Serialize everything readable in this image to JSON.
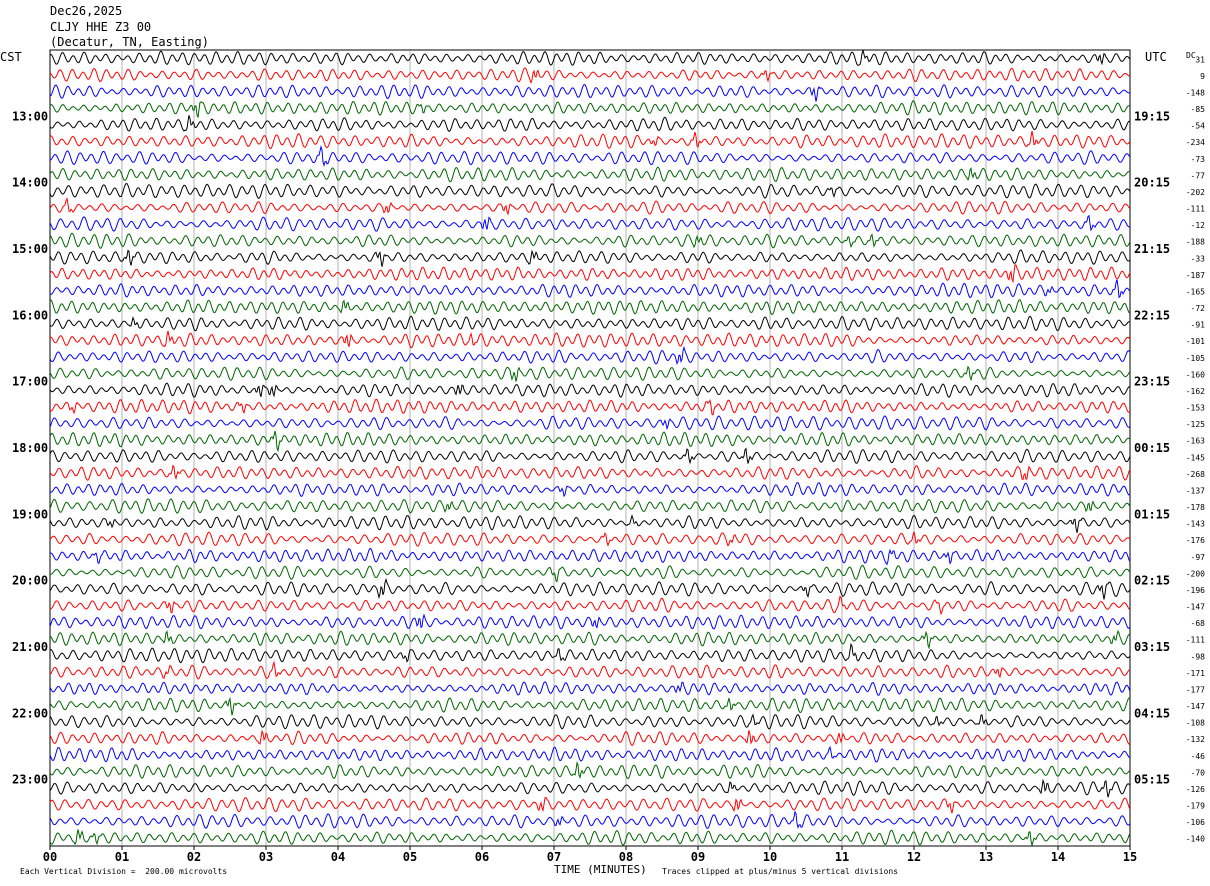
{
  "header": {
    "date": "Dec26,2025",
    "station": "CLJY HHE Z3 00",
    "location": "(Decatur, TN, Easting)"
  },
  "left_tz": "CST",
  "right_tz": "UTC",
  "dc_label": "DC",
  "dc_first": "31",
  "footer": {
    "left": "Each Vertical Division =  200.00 microvolts",
    "xlabel": "TIME (MINUTES)",
    "right": "Traces clipped at plus/minus 5 vertical divisions"
  },
  "colors": {
    "trace_cycle": [
      "#000000",
      "#ff0000",
      "#0000ff",
      "#006400"
    ],
    "grid": "#808080"
  },
  "chart_data": {
    "type": "line",
    "title": "",
    "xlabel": "TIME (MINUTES)",
    "xlim": [
      0,
      15
    ],
    "x_ticks": [
      "00",
      "01",
      "02",
      "03",
      "04",
      "05",
      "06",
      "07",
      "08",
      "09",
      "10",
      "11",
      "12",
      "13",
      "14",
      "15"
    ],
    "left_hour_labels": [
      {
        "label": "13:00",
        "row": 4
      },
      {
        "label": "14:00",
        "row": 8
      },
      {
        "label": "15:00",
        "row": 12
      },
      {
        "label": "16:00",
        "row": 16
      },
      {
        "label": "17:00",
        "row": 20
      },
      {
        "label": "18:00",
        "row": 24
      },
      {
        "label": "19:00",
        "row": 28
      },
      {
        "label": "20:00",
        "row": 32
      },
      {
        "label": "21:00",
        "row": 36
      },
      {
        "label": "22:00",
        "row": 40
      },
      {
        "label": "23:00",
        "row": 44
      }
    ],
    "right_hour_labels": [
      {
        "label": "19:15",
        "row": 4
      },
      {
        "label": "20:15",
        "row": 8
      },
      {
        "label": "21:15",
        "row": 12
      },
      {
        "label": "22:15",
        "row": 16
      },
      {
        "label": "23:15",
        "row": 20
      },
      {
        "label": "00:15",
        "row": 24
      },
      {
        "label": "01:15",
        "row": 28
      },
      {
        "label": "02:15",
        "row": 32
      },
      {
        "label": "03:15",
        "row": 36
      },
      {
        "label": "04:15",
        "row": 40
      },
      {
        "label": "05:15",
        "row": 44
      }
    ],
    "dc_offsets": [
      31,
      9,
      -148,
      -85,
      -54,
      -234,
      -73,
      -77,
      -202,
      -111,
      -12,
      -188,
      -33,
      -187,
      -165,
      -72,
      -91,
      -101,
      -105,
      -160,
      -162,
      -153,
      -125,
      -163,
      -145,
      -268,
      -137,
      -178,
      -143,
      -176,
      -97,
      -200,
      -196,
      -147,
      -68,
      -111,
      -98,
      -171,
      -177,
      -147,
      -108,
      -132,
      -46,
      -70,
      -126,
      -179,
      -106,
      -140
    ]
  }
}
